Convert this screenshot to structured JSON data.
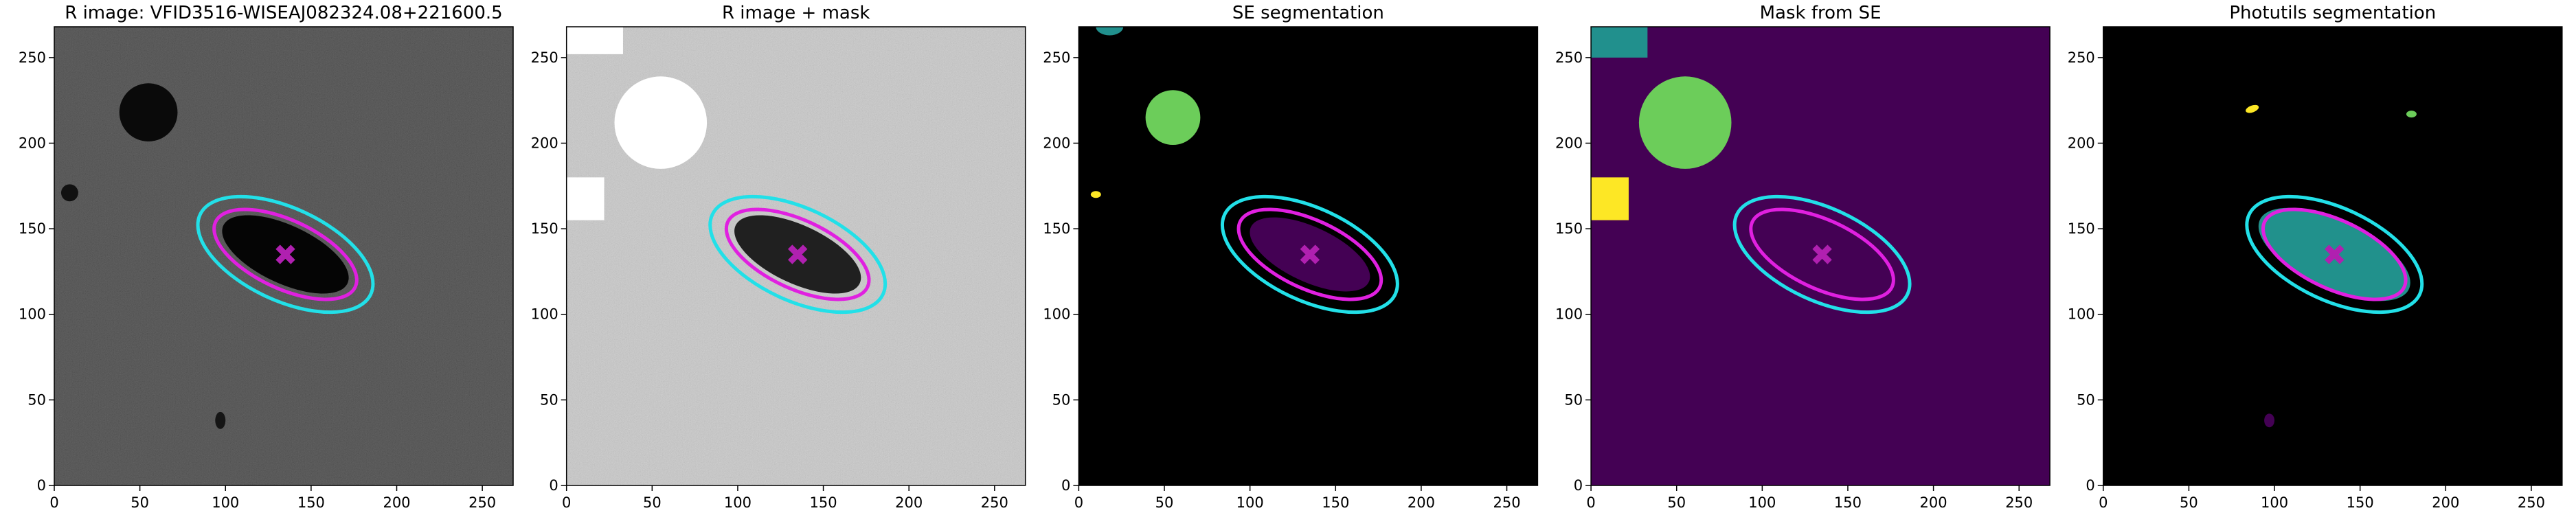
{
  "chart_data": [
    {
      "type": "image",
      "title": "R image: VFID3516-WISEAJ082324.08+221600.5",
      "background": "#4a4a4a",
      "noise": true,
      "xlim": [
        0,
        268
      ],
      "ylim": [
        0,
        268
      ],
      "xticks": [
        0,
        50,
        100,
        150,
        200,
        250
      ],
      "yticks": [
        0,
        50,
        100,
        150,
        200,
        250
      ],
      "regions": [
        {
          "shape": "ellipse",
          "center": [
            135,
            135
          ],
          "radii": [
            40,
            17
          ],
          "angle": -25,
          "color": "#050505"
        },
        {
          "shape": "ellipse",
          "center": [
            55,
            218
          ],
          "radii": [
            17,
            17
          ],
          "angle": 0,
          "color": "#0a0a0a"
        },
        {
          "shape": "ellipse",
          "center": [
            9,
            171
          ],
          "radii": [
            5,
            5
          ],
          "angle": 0,
          "color": "#111111"
        },
        {
          "shape": "ellipse",
          "center": [
            97,
            38
          ],
          "radii": [
            3,
            5
          ],
          "angle": 0,
          "color": "#151515"
        }
      ],
      "ellipses": [
        {
          "center": [
            135,
            135
          ],
          "radii": [
            55,
            27
          ],
          "angle": -25,
          "color": "#22e0e8"
        },
        {
          "center": [
            135,
            135
          ],
          "radii": [
            45,
            20
          ],
          "angle": -25,
          "color": "#e020e0"
        }
      ],
      "marker": {
        "center": [
          135,
          135
        ],
        "color": "#b020b0"
      }
    },
    {
      "type": "image",
      "title": "R image + mask",
      "background": "#b8b8b8",
      "noise": true,
      "xlim": [
        0,
        268
      ],
      "ylim": [
        0,
        268
      ],
      "xticks": [
        0,
        50,
        100,
        150,
        200,
        250
      ],
      "yticks": [
        0,
        50,
        100,
        150,
        200,
        250
      ],
      "regions": [
        {
          "shape": "ellipse",
          "center": [
            135,
            135
          ],
          "radii": [
            40,
            17
          ],
          "angle": -25,
          "color": "#202020"
        },
        {
          "shape": "ellipse",
          "center": [
            55,
            212
          ],
          "radii": [
            27,
            27
          ],
          "angle": 0,
          "color": "#ffffff"
        },
        {
          "shape": "rect",
          "x": [
            0,
            33
          ],
          "y": [
            252,
            268
          ],
          "color": "#ffffff"
        },
        {
          "shape": "rect",
          "x": [
            0,
            22
          ],
          "y": [
            155,
            180
          ],
          "color": "#ffffff"
        }
      ],
      "ellipses": [
        {
          "center": [
            135,
            135
          ],
          "radii": [
            55,
            27
          ],
          "angle": -25,
          "color": "#22e0e8"
        },
        {
          "center": [
            135,
            135
          ],
          "radii": [
            45,
            20
          ],
          "angle": -25,
          "color": "#e020e0"
        }
      ],
      "marker": {
        "center": [
          135,
          135
        ],
        "color": "#b020b0"
      }
    },
    {
      "type": "image",
      "title": "SE segmentation",
      "background": "#000000",
      "noise": false,
      "xlim": [
        0,
        268
      ],
      "ylim": [
        0,
        268
      ],
      "xticks": [
        0,
        50,
        100,
        150,
        200,
        250
      ],
      "yticks": [
        0,
        50,
        100,
        150,
        200,
        250
      ],
      "regions": [
        {
          "shape": "ellipse",
          "center": [
            135,
            135
          ],
          "radii": [
            38,
            16
          ],
          "angle": -25,
          "color": "#440154"
        },
        {
          "shape": "ellipse",
          "center": [
            55,
            215
          ],
          "radii": [
            16,
            16
          ],
          "angle": 0,
          "color": "#6ccd5a"
        },
        {
          "shape": "ellipse",
          "center": [
            10,
            170
          ],
          "radii": [
            3,
            2
          ],
          "angle": 0,
          "color": "#fde725"
        },
        {
          "shape": "ellipse",
          "center": [
            18,
            268
          ],
          "radii": [
            8,
            5
          ],
          "angle": 0,
          "color": "#21908d"
        }
      ],
      "ellipses": [
        {
          "center": [
            135,
            135
          ],
          "radii": [
            55,
            27
          ],
          "angle": -25,
          "color": "#22e0e8"
        },
        {
          "center": [
            135,
            135
          ],
          "radii": [
            45,
            20
          ],
          "angle": -25,
          "color": "#e020e0"
        }
      ],
      "marker": {
        "center": [
          135,
          135
        ],
        "color": "#b020b0"
      }
    },
    {
      "type": "image",
      "title": "Mask from SE",
      "background": "#440154",
      "noise": false,
      "xlim": [
        0,
        268
      ],
      "ylim": [
        0,
        268
      ],
      "xticks": [
        0,
        50,
        100,
        150,
        200,
        250
      ],
      "yticks": [
        0,
        50,
        100,
        150,
        200,
        250
      ],
      "regions": [
        {
          "shape": "rect",
          "x": [
            0,
            33
          ],
          "y": [
            250,
            268
          ],
          "color": "#21908d"
        },
        {
          "shape": "ellipse",
          "center": [
            55,
            212
          ],
          "radii": [
            27,
            27
          ],
          "angle": 0,
          "color": "#6ccd5a"
        },
        {
          "shape": "rect",
          "x": [
            0,
            22
          ],
          "y": [
            155,
            180
          ],
          "color": "#fde725"
        }
      ],
      "ellipses": [
        {
          "center": [
            135,
            135
          ],
          "radii": [
            55,
            27
          ],
          "angle": -25,
          "color": "#22e0e8"
        },
        {
          "center": [
            135,
            135
          ],
          "radii": [
            45,
            20
          ],
          "angle": -25,
          "color": "#e020e0"
        }
      ],
      "marker": {
        "center": [
          135,
          135
        ],
        "color": "#b020b0"
      }
    },
    {
      "type": "image",
      "title": "Photutils segmentation",
      "background": "#000000",
      "noise": false,
      "xlim": [
        0,
        268
      ],
      "ylim": [
        0,
        268
      ],
      "xticks": [
        0,
        50,
        100,
        150,
        200,
        250
      ],
      "yticks": [
        0,
        50,
        100,
        150,
        200,
        250
      ],
      "regions": [
        {
          "shape": "ellipse",
          "center": [
            135,
            135
          ],
          "radii": [
            48,
            20
          ],
          "angle": -25,
          "color": "#21918c"
        },
        {
          "shape": "ellipse",
          "center": [
            87,
            220
          ],
          "radii": [
            4,
            2
          ],
          "angle": 20,
          "color": "#fde725"
        },
        {
          "shape": "ellipse",
          "center": [
            180,
            217
          ],
          "radii": [
            3,
            2
          ],
          "angle": 0,
          "color": "#6ccd5a"
        },
        {
          "shape": "ellipse",
          "center": [
            97,
            38
          ],
          "radii": [
            3,
            4
          ],
          "angle": 0,
          "color": "#440154"
        }
      ],
      "ellipses": [
        {
          "center": [
            135,
            135
          ],
          "radii": [
            55,
            27
          ],
          "angle": -25,
          "color": "#22e0e8"
        },
        {
          "center": [
            135,
            135
          ],
          "radii": [
            45,
            20
          ],
          "angle": -25,
          "color": "#e020e0"
        }
      ],
      "marker": {
        "center": [
          135,
          135
        ],
        "color": "#b020b0"
      }
    }
  ]
}
